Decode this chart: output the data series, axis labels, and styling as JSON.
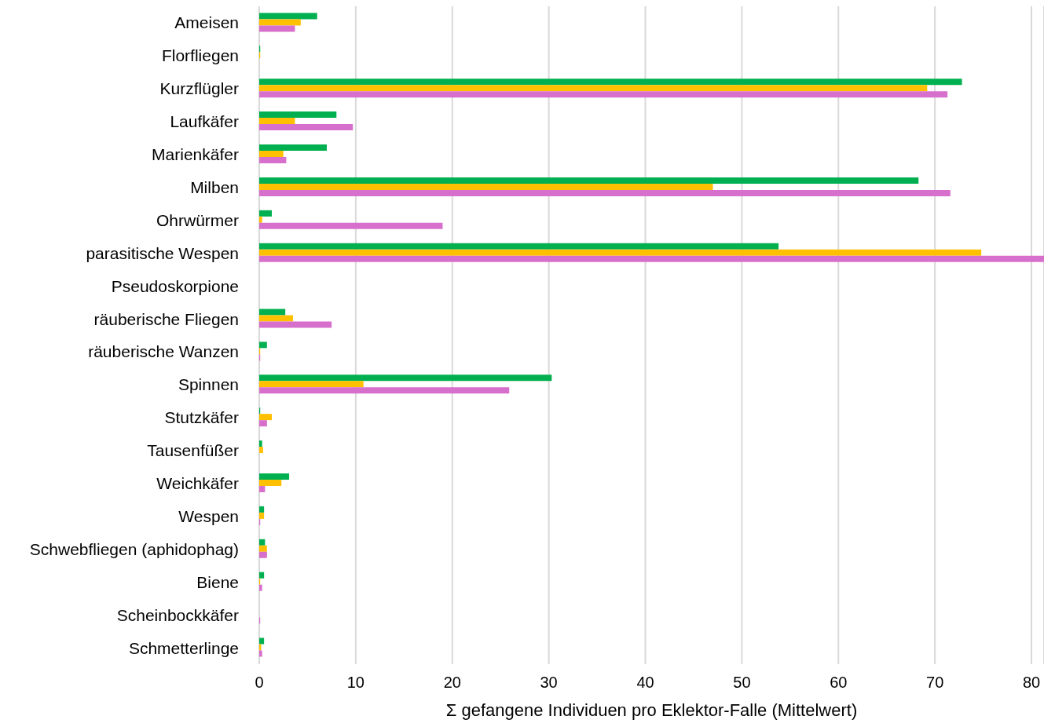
{
  "chart_data": {
    "type": "bar",
    "orientation": "horizontal",
    "xlabel": "Σ gefangene Individuen pro Eklektor-Falle (Mittelwert)",
    "categories": [
      "Ameisen",
      "Florfliegen",
      "Kurzflügler",
      "Laufkäfer",
      "Marienkäfer",
      "Milben",
      "Ohrwürmer",
      "parasitische Wespen",
      "Pseudoskorpione",
      "räuberische Fliegen",
      "räuberische Wanzen",
      "Spinnen",
      "Stutzkäfer",
      "Tausenfüßer",
      "Weichkäfer",
      "Wespen",
      "Schwebfliegen (aphidophag)",
      "Biene",
      "Scheinbockkäfer",
      "Schmetterlinge"
    ],
    "series": [
      {
        "color": "#00b050",
        "values": [
          6.0,
          0.1,
          72.8,
          8.0,
          7.0,
          68.3,
          1.3,
          53.8,
          0,
          2.7,
          0.8,
          30.3,
          0.1,
          0.3,
          3.1,
          0.5,
          0.6,
          0.5,
          0,
          0.5
        ]
      },
      {
        "color": "#ffc000",
        "values": [
          4.3,
          0.1,
          69.2,
          3.7,
          2.5,
          47.0,
          0.3,
          74.8,
          0,
          3.5,
          0.1,
          10.8,
          1.3,
          0.4,
          2.3,
          0.5,
          0.8,
          0.1,
          0,
          0.2
        ]
      },
      {
        "color": "#d76fcc",
        "values": [
          3.7,
          0,
          71.3,
          9.7,
          2.8,
          71.6,
          19.0,
          81.3,
          0,
          7.5,
          0.1,
          25.9,
          0.8,
          0,
          0.6,
          0.1,
          0.8,
          0.3,
          0.1,
          0.3
        ]
      }
    ],
    "xlim": [
      0,
      81.3
    ],
    "xticks": [
      0,
      10,
      20,
      30,
      40,
      50,
      60,
      70,
      80
    ],
    "grid": "x",
    "legend": false
  }
}
